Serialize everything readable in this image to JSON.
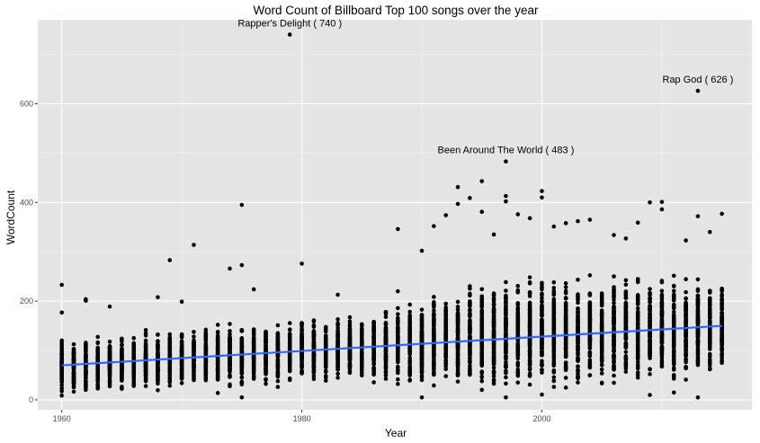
{
  "chart_data": {
    "type": "scatter",
    "title": "Word Count of Billboard Top 100 songs over the year",
    "xlabel": "Year",
    "ylabel": "WordCount",
    "xlim": [
      1958,
      2017.5
    ],
    "ylim": [
      -20,
      770
    ],
    "xticks": [
      1960,
      1980,
      2000
    ],
    "yticks": [
      0,
      200,
      400,
      600
    ],
    "grid": true,
    "background": "#e5e5e5",
    "point_color": "#000000",
    "trend_color": "#3366ff",
    "trend": {
      "start": [
        1960,
        70
      ],
      "end": [
        2015,
        150
      ]
    },
    "annotations": [
      {
        "label": "Rapper's Delight ( 740 )",
        "x": 1979,
        "y": 740
      },
      {
        "label": "Rap God ( 626 )",
        "x": 2013,
        "y": 626
      },
      {
        "label": "Been Around The World ( 483 )",
        "x": 1997,
        "y": 483
      }
    ],
    "points_summary": [
      {
        "year": 1960,
        "median": 65,
        "spread": 45
      },
      {
        "year": 1965,
        "median": 75,
        "spread": 50
      },
      {
        "year": 1970,
        "median": 85,
        "spread": 55
      },
      {
        "year": 1975,
        "median": 90,
        "spread": 60
      },
      {
        "year": 1980,
        "median": 100,
        "spread": 60
      },
      {
        "year": 1985,
        "median": 105,
        "spread": 60
      },
      {
        "year": 1990,
        "median": 120,
        "spread": 80
      },
      {
        "year": 1995,
        "median": 130,
        "spread": 100
      },
      {
        "year": 2000,
        "median": 135,
        "spread": 100
      },
      {
        "year": 2005,
        "median": 140,
        "spread": 100
      },
      {
        "year": 2010,
        "median": 145,
        "spread": 95
      },
      {
        "year": 2015,
        "median": 150,
        "spread": 90
      }
    ],
    "outliers": [
      {
        "x": 1960,
        "y": 233
      },
      {
        "x": 1960,
        "y": 177
      },
      {
        "x": 1962,
        "y": 204
      },
      {
        "x": 1962,
        "y": 201
      },
      {
        "x": 1964,
        "y": 189
      },
      {
        "x": 1968,
        "y": 208
      },
      {
        "x": 1969,
        "y": 283
      },
      {
        "x": 1970,
        "y": 199
      },
      {
        "x": 1971,
        "y": 314
      },
      {
        "x": 1974,
        "y": 266
      },
      {
        "x": 1975,
        "y": 395
      },
      {
        "x": 1975,
        "y": 273
      },
      {
        "x": 1976,
        "y": 224
      },
      {
        "x": 1979,
        "y": 740
      },
      {
        "x": 1980,
        "y": 276
      },
      {
        "x": 1983,
        "y": 213
      },
      {
        "x": 1988,
        "y": 346
      },
      {
        "x": 1988,
        "y": 220
      },
      {
        "x": 1990,
        "y": 302
      },
      {
        "x": 1991,
        "y": 352
      },
      {
        "x": 1992,
        "y": 374
      },
      {
        "x": 1993,
        "y": 431
      },
      {
        "x": 1993,
        "y": 397
      },
      {
        "x": 1994,
        "y": 409
      },
      {
        "x": 1995,
        "y": 443
      },
      {
        "x": 1995,
        "y": 381
      },
      {
        "x": 1996,
        "y": 335
      },
      {
        "x": 1997,
        "y": 483
      },
      {
        "x": 1997,
        "y": 413
      },
      {
        "x": 1997,
        "y": 402
      },
      {
        "x": 1998,
        "y": 376
      },
      {
        "x": 1999,
        "y": 368
      },
      {
        "x": 2000,
        "y": 423
      },
      {
        "x": 2000,
        "y": 410
      },
      {
        "x": 2001,
        "y": 351
      },
      {
        "x": 2002,
        "y": 358
      },
      {
        "x": 2003,
        "y": 362
      },
      {
        "x": 2004,
        "y": 365
      },
      {
        "x": 2006,
        "y": 334
      },
      {
        "x": 2007,
        "y": 327
      },
      {
        "x": 2008,
        "y": 359
      },
      {
        "x": 2009,
        "y": 400
      },
      {
        "x": 2010,
        "y": 401
      },
      {
        "x": 2010,
        "y": 386
      },
      {
        "x": 2012,
        "y": 323
      },
      {
        "x": 2013,
        "y": 626
      },
      {
        "x": 2013,
        "y": 372
      },
      {
        "x": 2014,
        "y": 340
      },
      {
        "x": 2015,
        "y": 377
      },
      {
        "x": 1997,
        "y": 5
      },
      {
        "x": 1990,
        "y": 5
      },
      {
        "x": 2009,
        "y": 10
      },
      {
        "x": 1975,
        "y": 5
      },
      {
        "x": 1973,
        "y": 14
      },
      {
        "x": 2013,
        "y": 5
      },
      {
        "x": 2011,
        "y": 15
      }
    ]
  }
}
